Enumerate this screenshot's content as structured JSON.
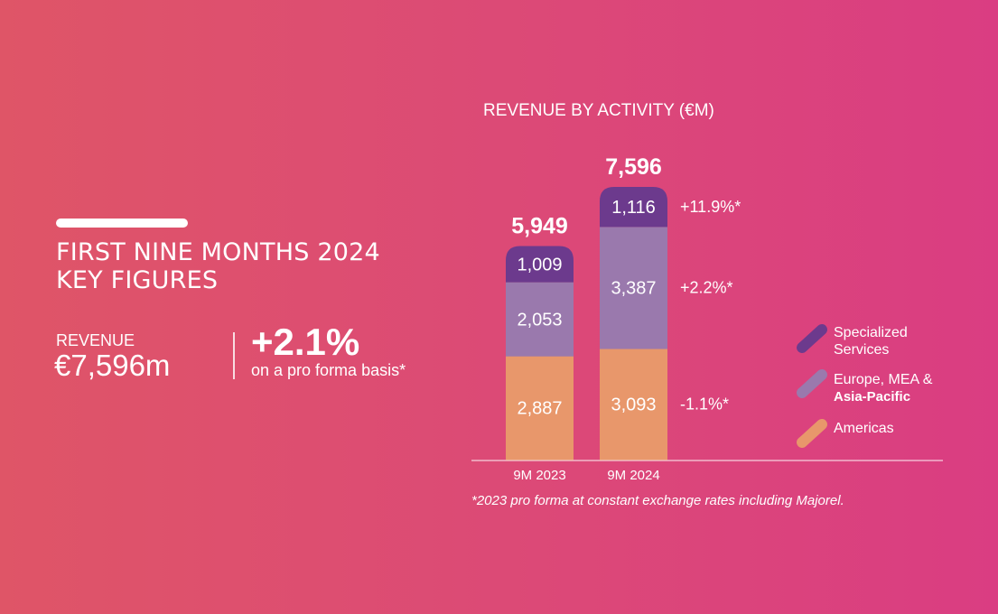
{
  "header": {
    "title_line1": "FIRST NINE MONTHS 2024",
    "title_line2": "KEY FIGURES"
  },
  "kpi": {
    "revenue_label": "REVENUE",
    "revenue_value": "€7,596m",
    "growth_value": "+2.1%",
    "growth_note": "on a pro forma basis*"
  },
  "chart_data": {
    "type": "bar",
    "stacked": true,
    "title": "REVENUE BY ACTIVITY (€M)",
    "categories": [
      "9M 2023",
      "9M 2024"
    ],
    "totals": [
      "5,949",
      "7,596"
    ],
    "series": [
      {
        "name": "Americas",
        "values": [
          2887,
          3093
        ],
        "labels": [
          "2,887",
          "3,093"
        ],
        "growth": "-1.1%*",
        "color": "#e8976b"
      },
      {
        "name_line1": "Europe, MEA &",
        "name_line2": "Asia-Pacific",
        "values": [
          2053,
          3387
        ],
        "labels": [
          "2,053",
          "3,387"
        ],
        "growth": "+2.2%*",
        "color": "#9a79ad"
      },
      {
        "name_line1": "Specialized",
        "name_line2": "Services",
        "values": [
          1009,
          1116
        ],
        "labels": [
          "1,009",
          "1,116"
        ],
        "growth": "+11.9%*",
        "color": "#6c3a8d"
      }
    ],
    "footnote": "*2023 pro forma at constant exchange rates including Majorel."
  }
}
